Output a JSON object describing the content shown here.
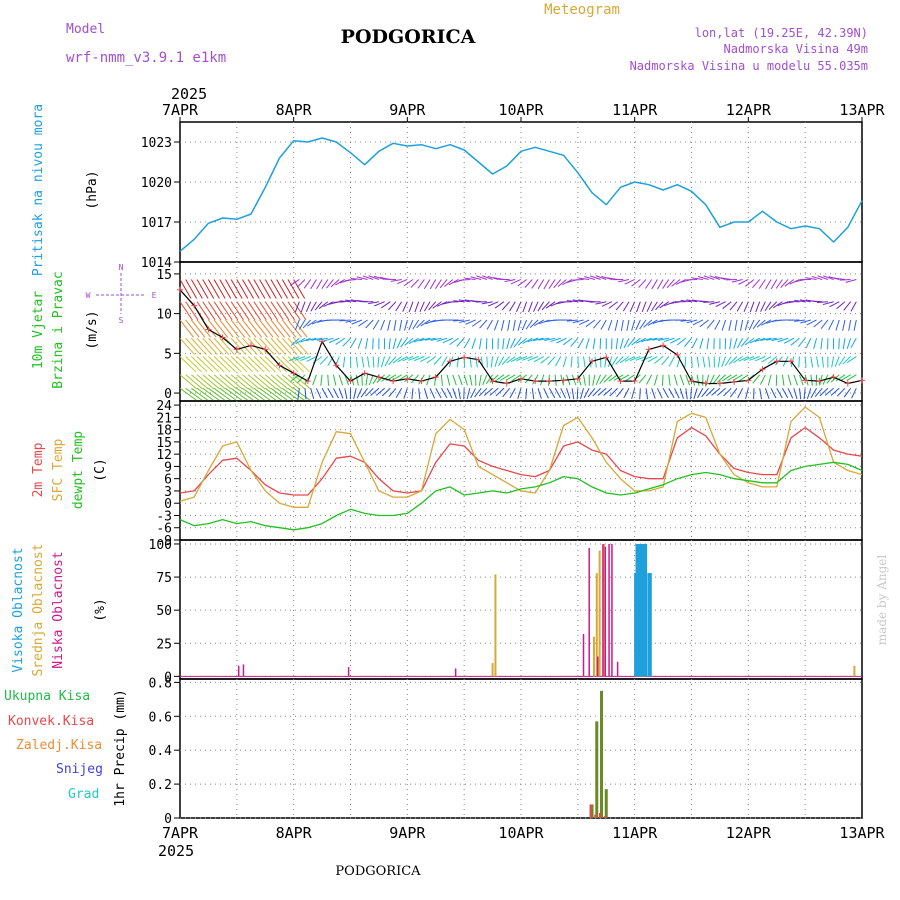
{
  "header": {
    "model_label": "Model",
    "model_name": "wrf-nmm_v3.9.1 e1km",
    "title": "PODGORICA",
    "product": "Meteogram",
    "lonlat": "lon,lat (19.25E, 42.39N)",
    "elevation": "Nadmorska Visina 49m",
    "model_elevation": "Nadmorska Visina u modelu 55.035m",
    "year_top": "2025",
    "year_bottom": "2025",
    "footer_title": "PODGORICA",
    "credit": "made by Angel"
  },
  "colors": {
    "pressure": "#1ea0dc",
    "temp2m": "#e8484c",
    "sfctemp": "#d8a838",
    "dewpoint": "#22c022",
    "cloud_high": "#1ea0dc",
    "cloud_mid": "#d8a838",
    "cloud_low": "#d0188c",
    "precip_total": "#22b84a",
    "precip_conv": "#e8484c",
    "precip_frz": "#f08c30",
    "snow": "#4040e0",
    "graupel": "#20c8c8",
    "wind_label": "#22c022",
    "compass": "#a050d0",
    "credit": "#c8c8c8"
  },
  "chart_data": {
    "type": "line",
    "x_range": [
      "2025-04-07T00",
      "2025-04-13T00"
    ],
    "x_tick_labels": [
      "7APR",
      "8APR",
      "9APR",
      "10APR",
      "11APR",
      "12APR",
      "13APR"
    ],
    "panels": {
      "pressure": {
        "ylabel_lines": [
          "Pritisak na nivou mora"
        ],
        "unit": "(hPa)",
        "ylim": [
          1014,
          1024.5
        ],
        "ticks": [
          "1014",
          "1017",
          "1020",
          "1023"
        ],
        "series": [
          {
            "name": "Pritisak na nivou mora",
            "x": [
              0,
              3,
              6,
              9,
              12,
              15,
              18,
              21,
              24,
              27,
              30,
              33,
              36,
              39,
              42,
              45,
              48,
              51,
              54,
              57,
              60,
              63,
              66,
              69,
              72,
              75,
              78,
              81,
              84,
              87,
              90,
              93,
              96,
              99,
              102,
              105,
              108,
              111,
              114,
              117,
              120,
              123,
              126,
              129,
              132,
              135,
              138,
              141,
              144
            ],
            "values": [
              1014.8,
              1015.7,
              1016.9,
              1017.3,
              1017.2,
              1017.6,
              1019.6,
              1021.8,
              1023.1,
              1023.0,
              1023.3,
              1023.0,
              1022.2,
              1021.3,
              1022.3,
              1022.9,
              1022.7,
              1022.8,
              1022.5,
              1022.8,
              1022.4,
              1021.5,
              1020.6,
              1021.2,
              1022.3,
              1022.6,
              1022.3,
              1022.0,
              1020.7,
              1019.2,
              1018.3,
              1019.6,
              1020.0,
              1019.8,
              1019.4,
              1019.8,
              1019.3,
              1018.3,
              1016.6,
              1017.0,
              1017.0,
              1017.8,
              1017.0,
              1016.5,
              1016.7,
              1016.5,
              1015.5,
              1016.6,
              1018.6
            ]
          }
        ]
      },
      "wind": {
        "ylabel_lines": [
          "10m Vjetar",
          "Brzina i Pravac"
        ],
        "unit": "(m/s)",
        "ylim": [
          -1,
          16.5
        ],
        "ticks": [
          "0",
          "5",
          "10",
          "15"
        ],
        "compass": {
          "north": "N",
          "south": "S",
          "west": "W",
          "east": "E"
        },
        "speed_series": {
          "x": [
            0,
            3,
            6,
            9,
            12,
            15,
            18,
            21,
            24,
            27,
            30,
            33,
            36,
            39,
            42,
            45,
            48,
            51,
            54,
            57,
            60,
            63,
            66,
            69,
            72,
            75,
            78,
            81,
            84,
            87,
            90,
            93,
            96,
            99,
            102,
            105,
            108,
            111,
            114,
            117,
            120,
            123,
            126,
            129,
            132,
            135,
            138,
            141,
            144
          ],
          "values": [
            13,
            11,
            8,
            7,
            5.5,
            6,
            5.5,
            3.5,
            2.5,
            1.5,
            6.5,
            3.5,
            1.5,
            2.5,
            2,
            1.5,
            1.8,
            1.5,
            2,
            4,
            4.5,
            4.2,
            1.5,
            1.2,
            1.8,
            1.5,
            1.5,
            1.6,
            1.8,
            4,
            4.5,
            1.5,
            1.5,
            5.5,
            6,
            4.8,
            1.5,
            1.2,
            1.2,
            1.4,
            1.6,
            3,
            4,
            4,
            1.6,
            1.5,
            2,
            1.2,
            1.6
          ]
        }
      },
      "temperature": {
        "ylabel_lines": [
          "2m Temp",
          "SFC Temp",
          "dewpt Temp"
        ],
        "unit": "(C)",
        "ylim": [
          -9,
          25
        ],
        "ticks": [
          "-9",
          "-6",
          "-3",
          "0",
          "3",
          "6",
          "9",
          "12",
          "15",
          "18",
          "21",
          "24"
        ],
        "series": [
          {
            "name": "2m Temp",
            "x": [
              0,
              3,
              6,
              9,
              12,
              15,
              18,
              21,
              24,
              27,
              30,
              33,
              36,
              39,
              42,
              45,
              48,
              51,
              54,
              57,
              60,
              63,
              66,
              69,
              72,
              75,
              78,
              81,
              84,
              87,
              90,
              93,
              96,
              99,
              102,
              105,
              108,
              111,
              114,
              117,
              120,
              123,
              126,
              129,
              132,
              135,
              138,
              141,
              144
            ],
            "values": [
              2.5,
              3,
              7,
              10.5,
              11,
              8,
              4.5,
              2.5,
              2,
              2,
              6,
              11,
              11.5,
              10,
              6,
              3,
              2.5,
              3,
              10,
              14.5,
              14,
              10.5,
              9,
              8,
              7,
              6.5,
              8,
              14,
              15,
              13,
              12,
              8,
              6.5,
              6,
              6,
              16,
              18.5,
              16.5,
              12,
              8.5,
              7.5,
              7,
              7,
              16,
              18.5,
              16,
              13,
              12,
              11.5
            ]
          },
          {
            "name": "SFC Temp",
            "x": [
              0,
              3,
              6,
              9,
              12,
              15,
              18,
              21,
              24,
              27,
              30,
              33,
              36,
              39,
              42,
              45,
              48,
              51,
              54,
              57,
              60,
              63,
              66,
              69,
              72,
              75,
              78,
              81,
              84,
              87,
              90,
              93,
              96,
              99,
              102,
              105,
              108,
              111,
              114,
              117,
              120,
              123,
              126,
              129,
              132,
              135,
              138,
              141,
              144
            ],
            "values": [
              0.5,
              1.5,
              8,
              14,
              15,
              8,
              3,
              0,
              -1,
              -1,
              10,
              17.5,
              17,
              10,
              3,
              1.5,
              1.5,
              3,
              17,
              20.5,
              18,
              9,
              7,
              5,
              3,
              2.5,
              8,
              19,
              21,
              16,
              10,
              6,
              3,
              3,
              4,
              20,
              22,
              21,
              12,
              7,
              5,
              4,
              4,
              20,
              23.5,
              21,
              10,
              8,
              7
            ]
          },
          {
            "name": "dewpt Temp",
            "x": [
              0,
              3,
              6,
              9,
              12,
              15,
              18,
              21,
              24,
              27,
              30,
              33,
              36,
              39,
              42,
              45,
              48,
              51,
              54,
              57,
              60,
              63,
              66,
              69,
              72,
              75,
              78,
              81,
              84,
              87,
              90,
              93,
              96,
              99,
              102,
              105,
              108,
              111,
              114,
              117,
              120,
              123,
              126,
              129,
              132,
              135,
              138,
              141,
              144
            ],
            "values": [
              -4,
              -5.5,
              -5,
              -4,
              -5,
              -4.5,
              -5.5,
              -6,
              -6.5,
              -6,
              -5,
              -3,
              -1.5,
              -2.5,
              -3,
              -3,
              -2.5,
              0,
              3,
              4,
              2,
              2.5,
              3,
              2.5,
              3.5,
              4,
              5,
              6.5,
              6,
              4,
              2.5,
              2,
              2.5,
              3.5,
              4.5,
              6,
              7,
              7.5,
              7,
              6,
              5.5,
              5,
              5,
              8,
              9,
              9.5,
              10,
              9.5,
              8
            ]
          }
        ]
      },
      "clouds": {
        "ylabel_lines": [
          "Visoka Oblacnost",
          "Srednja Oblacnost",
          "Niska Oblacnost"
        ],
        "unit": "(%)",
        "ylim": [
          -2,
          103
        ],
        "ticks": [
          "0",
          "25",
          "50",
          "75",
          "100"
        ],
        "high": {
          "x": [
            96.2,
            96.5,
            96.8,
            97.1,
            97.4,
            97.7,
            98.0,
            98.3,
            99.0,
            99.3
          ],
          "values": [
            78,
            100,
            100,
            100,
            100,
            100,
            100,
            100,
            78,
            78
          ]
        },
        "mid": {
          "x": [
            66.0,
            66.6,
            87.4,
            88.0,
            88.6,
            89.5,
            142.4
          ],
          "values": [
            10,
            77,
            30,
            78,
            95,
            100,
            8
          ]
        },
        "low": {
          "x": [
            12.4,
            13.4,
            35.6,
            58.2,
            85.2,
            86.4,
            88.2,
            89.3,
            89.8,
            90.6,
            91.2,
            92.4
          ],
          "values": [
            8,
            9,
            7,
            6,
            32,
            97,
            15,
            100,
            98,
            100,
            100,
            11
          ]
        }
      },
      "precip": {
        "ylabel_lines": [
          "1hr Precip (mm)"
        ],
        "legend": [
          "Ukupna Kisa",
          "Konvek.Kisa",
          "Zaledj.Kisa",
          "Snijeg",
          "Grad"
        ],
        "ylim": [
          0,
          0.82
        ],
        "ticks": [
          "0",
          "0.2",
          "0.4",
          "0.6",
          "0.8"
        ],
        "total": {
          "x": [
            87,
            88,
            89,
            90
          ],
          "values": [
            0.08,
            0.57,
            0.75,
            0.17
          ]
        },
        "convective": {
          "x": [
            87,
            88,
            89,
            90
          ],
          "values": [
            0.08,
            0.02,
            0.03,
            0.01
          ]
        }
      }
    }
  }
}
